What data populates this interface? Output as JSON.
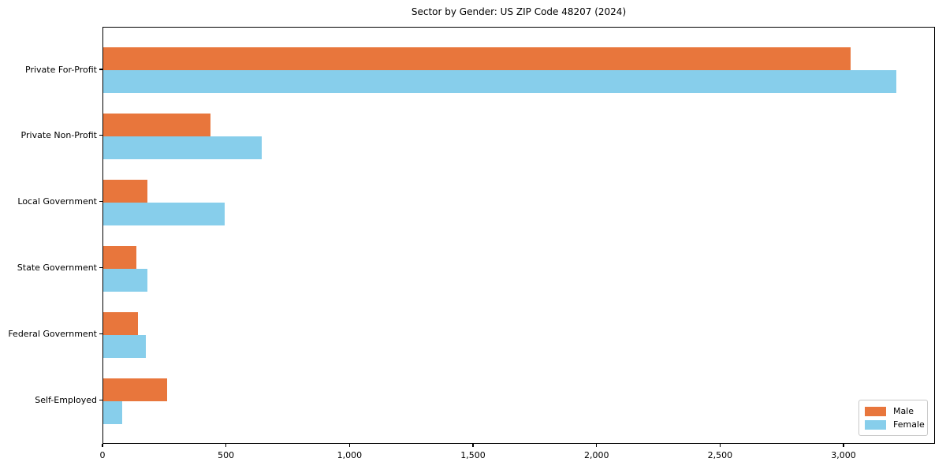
{
  "chart_data": {
    "type": "bar",
    "orientation": "horizontal",
    "title": "Sector by Gender: US ZIP Code 48207 (2024)",
    "categories": [
      "Private For-Profit",
      "Private Non-Profit",
      "Local Government",
      "State Government",
      "Federal Government",
      "Self-Employed"
    ],
    "series": [
      {
        "name": "Male",
        "color": "#e8763c",
        "values": [
          3025,
          435,
          180,
          135,
          140,
          258
        ]
      },
      {
        "name": "Female",
        "color": "#87ceeb",
        "values": [
          3210,
          640,
          490,
          178,
          172,
          75
        ]
      }
    ],
    "xlabel": "",
    "ylabel": "",
    "xlim": [
      0,
      3370
    ],
    "xticks": {
      "values": [
        0,
        500,
        1000,
        1500,
        2000,
        2500,
        3000
      ],
      "labels": [
        "0",
        "500",
        "1,000",
        "1,500",
        "2,000",
        "2,500",
        "3,000"
      ]
    },
    "grid": false,
    "legend": {
      "position": "lower right",
      "entries": [
        "Male",
        "Female"
      ]
    },
    "colors": {
      "male": "#e8763c",
      "female": "#87ceeb",
      "axis": "#000000",
      "background": "#ffffff"
    }
  }
}
